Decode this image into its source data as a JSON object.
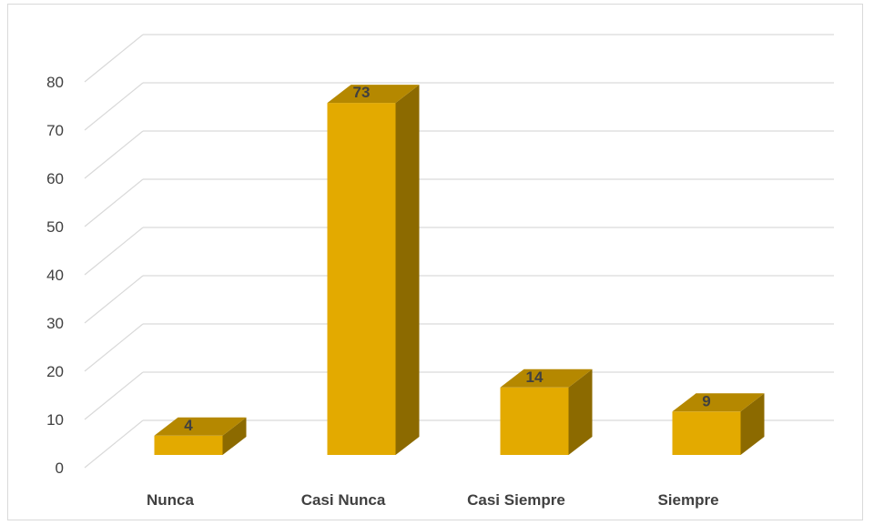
{
  "chart_data": {
    "type": "bar",
    "style": "3d-column",
    "categories": [
      "Nunca",
      "Casi Nunca",
      "Casi Siempre",
      "Siempre"
    ],
    "values": [
      4,
      73,
      14,
      9
    ],
    "data_labels": [
      "4",
      "73",
      "14",
      "9"
    ],
    "ylim": [
      0,
      80
    ],
    "yticks": [
      "0",
      "10",
      "20",
      "30",
      "40",
      "50",
      "60",
      "70",
      "80"
    ],
    "grid": true,
    "legend": "none",
    "colors": {
      "bar_front": "#E3AA00",
      "bar_top": "#B58800",
      "bar_side": "#8C6A00",
      "grid": "#d9d9d9",
      "text": "#404040"
    }
  }
}
